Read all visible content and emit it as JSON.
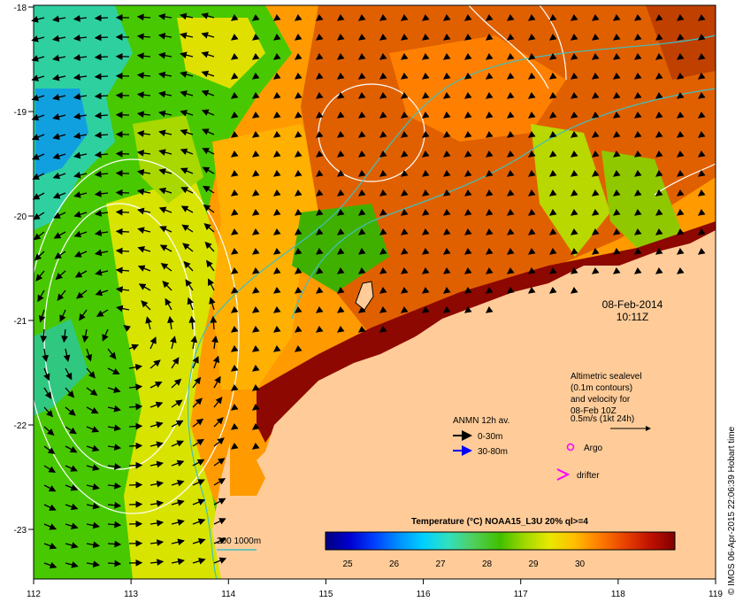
{
  "map": {
    "date": "08-Feb-2014",
    "time": "10:11Z",
    "lon_ticks": [
      "112",
      "113",
      "114",
      "115",
      "116",
      "117",
      "118",
      "119"
    ],
    "lat_ticks": [
      "-18",
      "-19",
      "-20",
      "-21",
      "-22",
      "-23"
    ],
    "altimetry_note": [
      "Altimetric sealevel",
      "(0.1m contours)",
      "and velocity for",
      "08-Feb 10Z",
      "0.5m/s (1kt 24h)"
    ],
    "anmn_title": "ANMN 12h av.",
    "anmn_items": [
      {
        "label": "0-30m",
        "color": "#000000"
      },
      {
        "label": "30-80m",
        "color": "#0000ff"
      }
    ],
    "argo_label": "Argo",
    "argo_color": "#ff00ff",
    "drifter_label": "drifter",
    "drifter_color": "#ff00ff",
    "isobath_label": "200  1000m",
    "isobath_color": "#40c0c0",
    "colorbar_title": "Temperature (°C) NOAA15_L3U 20% ql>=4",
    "colorbar_ticks": [
      "25",
      "26",
      "27",
      "28",
      "29",
      "30"
    ],
    "credit": "© IMOS 06-Apr-2015 22:06:39 Hobart time",
    "land_color": "#ffcc99",
    "colormap": [
      "#00007f",
      "#0000d0",
      "#0040ff",
      "#0090ff",
      "#00d0ff",
      "#30e0c0",
      "#50d060",
      "#40c000",
      "#a0d800",
      "#e8e800",
      "#ffc000",
      "#ff8000",
      "#e84000",
      "#c01000",
      "#800000"
    ]
  }
}
